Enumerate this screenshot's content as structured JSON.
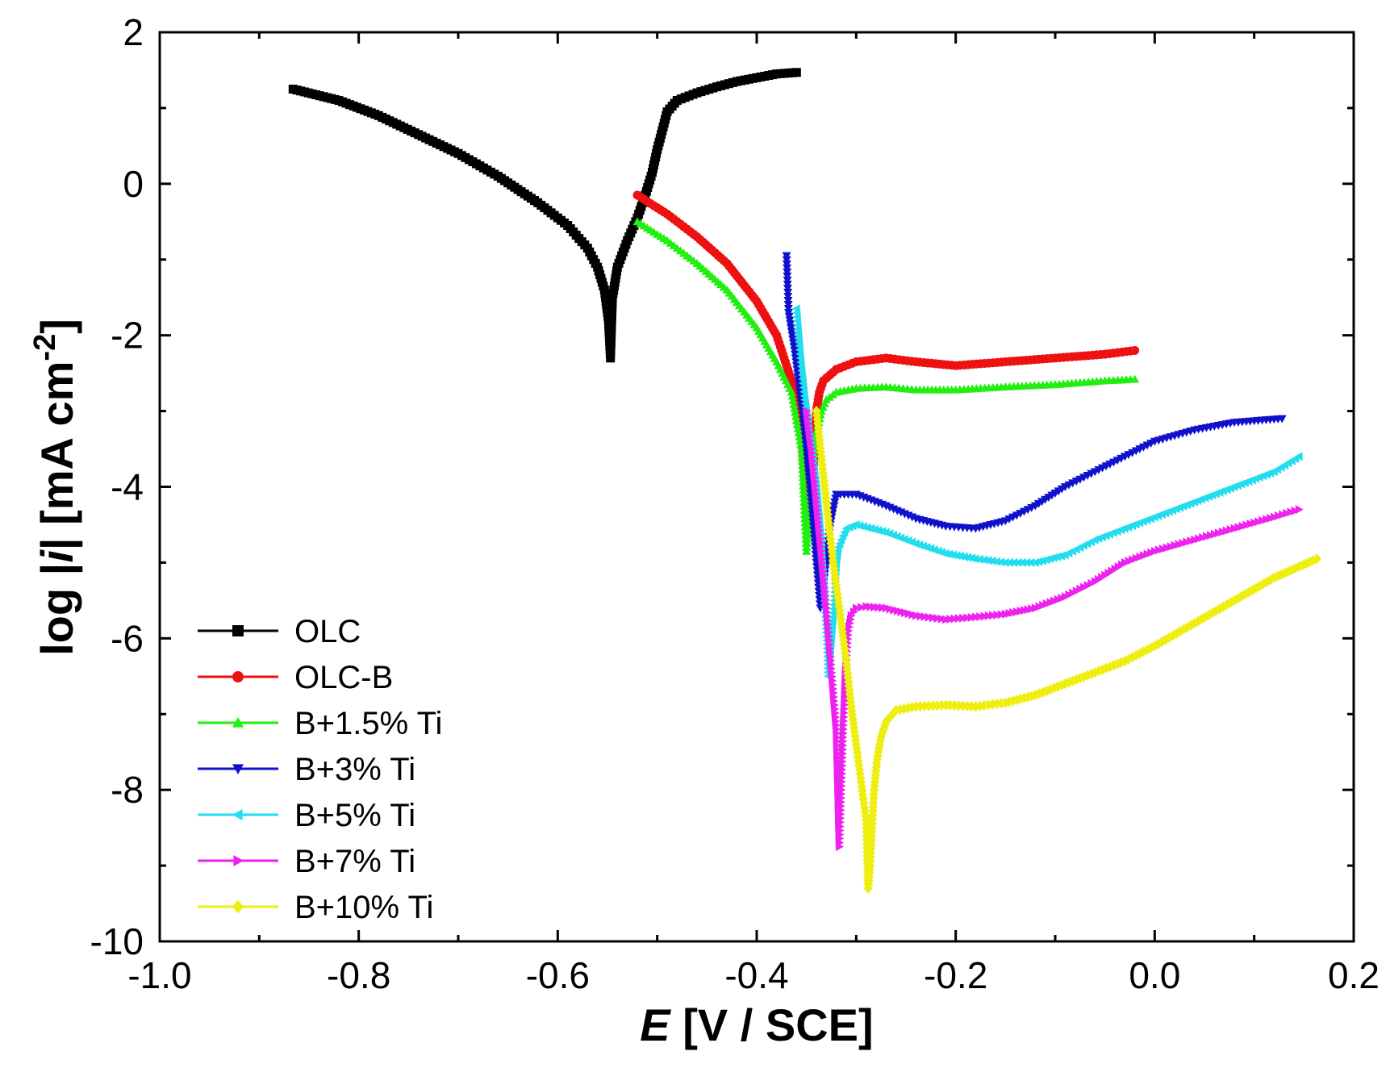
{
  "chart_data": {
    "type": "line",
    "title": "",
    "xlabel_italic": "E",
    "xlabel_rest": " [V / SCE]",
    "ylabel_pre": "log |",
    "ylabel_italic": "i",
    "ylabel_post": "| [mA cm",
    "ylabel_sup": "-2",
    "ylabel_end": "]",
    "xlim": [
      -1.0,
      0.2
    ],
    "ylim": [
      -10,
      2
    ],
    "xticks": [
      -1.0,
      -0.8,
      -0.6,
      -0.4,
      -0.2,
      0.0,
      0.2
    ],
    "xtick_labels": [
      "-1.0",
      "-0.8",
      "-0.6",
      "-0.4",
      "-0.2",
      "0.0",
      "0.2"
    ],
    "yticks": [
      -10,
      -8,
      -6,
      -4,
      -2,
      0,
      2
    ],
    "ytick_labels": [
      "-10",
      "-8",
      "-6",
      "-4",
      "-2",
      "0",
      "2"
    ],
    "grid": false,
    "legend_position": "bottom-left",
    "series": [
      {
        "name": "OLC",
        "color": "#000000",
        "marker": "square",
        "x": [
          -0.866,
          -0.82,
          -0.78,
          -0.74,
          -0.7,
          -0.66,
          -0.62,
          -0.59,
          -0.57,
          -0.56,
          -0.553,
          -0.549,
          -0.547,
          -0.545,
          -0.54,
          -0.53,
          -0.52,
          -0.512,
          -0.505,
          -0.5,
          -0.495,
          -0.49,
          -0.48,
          -0.46,
          -0.44,
          -0.42,
          -0.4,
          -0.38,
          -0.36
        ],
        "y": [
          1.25,
          1.1,
          0.9,
          0.65,
          0.4,
          0.1,
          -0.25,
          -0.55,
          -0.85,
          -1.1,
          -1.4,
          -1.8,
          -2.3,
          -1.5,
          -1.1,
          -0.75,
          -0.45,
          -0.15,
          0.15,
          0.45,
          0.7,
          0.95,
          1.1,
          1.2,
          1.28,
          1.35,
          1.4,
          1.45,
          1.47
        ]
      },
      {
        "name": "OLC-B",
        "color": "#ee1111",
        "marker": "circle",
        "x": [
          -0.52,
          -0.49,
          -0.46,
          -0.43,
          -0.4,
          -0.38,
          -0.365,
          -0.355,
          -0.348,
          -0.342,
          -0.34,
          -0.337,
          -0.333,
          -0.32,
          -0.3,
          -0.27,
          -0.24,
          -0.2,
          -0.15,
          -0.1,
          -0.05,
          -0.02
        ],
        "y": [
          -0.15,
          -0.4,
          -0.7,
          -1.05,
          -1.55,
          -2.0,
          -2.6,
          -3.3,
          -4.5,
          -3.6,
          -3.0,
          -2.75,
          -2.6,
          -2.45,
          -2.35,
          -2.3,
          -2.35,
          -2.4,
          -2.35,
          -2.3,
          -2.25,
          -2.2
        ]
      },
      {
        "name": "B+1.5% Ti",
        "color": "#22ee11",
        "marker": "triangle-up",
        "x": [
          -0.52,
          -0.49,
          -0.46,
          -0.43,
          -0.4,
          -0.38,
          -0.365,
          -0.355,
          -0.35,
          -0.345,
          -0.34,
          -0.335,
          -0.33,
          -0.32,
          -0.3,
          -0.27,
          -0.24,
          -0.2,
          -0.15,
          -0.1,
          -0.05,
          -0.02
        ],
        "y": [
          -0.5,
          -0.75,
          -1.05,
          -1.4,
          -1.9,
          -2.35,
          -2.75,
          -3.5,
          -4.85,
          -4.0,
          -3.3,
          -3.0,
          -2.85,
          -2.75,
          -2.7,
          -2.68,
          -2.72,
          -2.72,
          -2.68,
          -2.65,
          -2.6,
          -2.58
        ]
      },
      {
        "name": "B+3% Ti",
        "color": "#1111cc",
        "marker": "triangle-down",
        "x": [
          -0.37,
          -0.368,
          -0.365,
          -0.362,
          -0.358,
          -0.354,
          -0.35,
          -0.345,
          -0.34,
          -0.336,
          -0.332,
          -0.326,
          -0.32,
          -0.3,
          -0.27,
          -0.24,
          -0.21,
          -0.18,
          -0.15,
          -0.12,
          -0.09,
          -0.06,
          -0.03,
          0.0,
          0.04,
          0.08,
          0.128
        ],
        "y": [
          -0.95,
          -1.7,
          -1.95,
          -2.2,
          -2.6,
          -3.0,
          -3.5,
          -4.2,
          -5.0,
          -5.6,
          -5.2,
          -4.5,
          -4.1,
          -4.1,
          -4.25,
          -4.42,
          -4.52,
          -4.55,
          -4.45,
          -4.25,
          -4.0,
          -3.8,
          -3.6,
          -3.4,
          -3.25,
          -3.15,
          -3.1
        ]
      },
      {
        "name": "B+5% Ti",
        "color": "#22ddee",
        "marker": "triangle-left",
        "x": [
          -0.36,
          -0.356,
          -0.352,
          -0.348,
          -0.344,
          -0.34,
          -0.336,
          -0.332,
          -0.328,
          -0.325,
          -0.322,
          -0.32,
          -0.318,
          -0.315,
          -0.31,
          -0.3,
          -0.27,
          -0.24,
          -0.21,
          -0.18,
          -0.15,
          -0.12,
          -0.09,
          -0.06,
          -0.03,
          0.0,
          0.04,
          0.08,
          0.12,
          0.145
        ],
        "y": [
          -1.65,
          -2.3,
          -2.8,
          -3.2,
          -3.6,
          -4.0,
          -4.6,
          -5.4,
          -6.5,
          -6.0,
          -5.5,
          -5.0,
          -4.8,
          -4.7,
          -4.55,
          -4.5,
          -4.6,
          -4.75,
          -4.88,
          -4.95,
          -5.0,
          -5.0,
          -4.9,
          -4.7,
          -4.55,
          -4.4,
          -4.2,
          -4.0,
          -3.8,
          -3.6
        ]
      },
      {
        "name": "B+7% Ti",
        "color": "#ee22ee",
        "marker": "triangle-right",
        "x": [
          -0.35,
          -0.345,
          -0.34,
          -0.335,
          -0.33,
          -0.325,
          -0.32,
          -0.317,
          -0.315,
          -0.313,
          -0.311,
          -0.308,
          -0.305,
          -0.3,
          -0.29,
          -0.27,
          -0.24,
          -0.21,
          -0.18,
          -0.15,
          -0.12,
          -0.09,
          -0.06,
          -0.03,
          0.0,
          0.04,
          0.08,
          0.12,
          0.145
        ],
        "y": [
          -3.0,
          -3.5,
          -4.2,
          -4.9,
          -5.6,
          -6.4,
          -7.2,
          -8.75,
          -8.0,
          -7.2,
          -6.5,
          -5.9,
          -5.7,
          -5.6,
          -5.58,
          -5.6,
          -5.7,
          -5.75,
          -5.72,
          -5.68,
          -5.6,
          -5.45,
          -5.25,
          -5.0,
          -4.85,
          -4.7,
          -4.55,
          -4.4,
          -4.3
        ]
      },
      {
        "name": "B+10% Ti",
        "color": "#eeee11",
        "marker": "diamond",
        "x": [
          -0.34,
          -0.335,
          -0.33,
          -0.325,
          -0.32,
          -0.315,
          -0.31,
          -0.305,
          -0.3,
          -0.295,
          -0.29,
          -0.288,
          -0.286,
          -0.284,
          -0.282,
          -0.279,
          -0.275,
          -0.27,
          -0.26,
          -0.24,
          -0.21,
          -0.18,
          -0.15,
          -0.12,
          -0.09,
          -0.06,
          -0.03,
          0.0,
          0.04,
          0.08,
          0.12,
          0.163
        ],
        "y": [
          -3.0,
          -3.6,
          -4.2,
          -4.8,
          -5.3,
          -5.8,
          -6.3,
          -6.9,
          -7.4,
          -7.9,
          -8.4,
          -9.3,
          -9.0,
          -8.5,
          -8.0,
          -7.6,
          -7.3,
          -7.1,
          -6.95,
          -6.9,
          -6.88,
          -6.9,
          -6.85,
          -6.75,
          -6.6,
          -6.45,
          -6.3,
          -6.1,
          -5.8,
          -5.5,
          -5.2,
          -4.95
        ]
      }
    ]
  }
}
